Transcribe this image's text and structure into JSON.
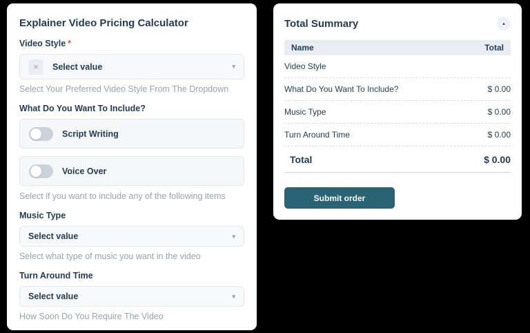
{
  "icons": {
    "caret": "▾",
    "clear": "×",
    "collapse": "▴"
  },
  "colors": {
    "heading": "#1f3b57",
    "helper": "#99a3ae",
    "required": "#e6543f",
    "button": "#2a6374",
    "table_header_bg": "#e9edf1"
  },
  "calculator": {
    "title": "Explainer Video Pricing Calculator",
    "video_style": {
      "label": "Video Style",
      "required_mark": "*",
      "value": "Select value",
      "helper": "Select Your Preferred Video Style From The Dropdown"
    },
    "include": {
      "label": "What Do You Want To Include?",
      "toggles": [
        {
          "label": "Script Writing",
          "state": "off"
        },
        {
          "label": "Voice Over",
          "state": "off"
        }
      ],
      "helper": "Select if you want to include any of the following items"
    },
    "music_type": {
      "label": "Music Type",
      "value": "Select value",
      "helper": "Select what type of music you want in the video"
    },
    "turnaround": {
      "label": "Turn Around Time",
      "value": "Select value",
      "helper": "How Soon Do You Require The Video"
    }
  },
  "summary": {
    "title": "Total Summary",
    "columns": {
      "name": "Name",
      "total": "Total"
    },
    "rows": [
      {
        "name": "Video Style",
        "total": ""
      },
      {
        "name": "What Do You Want To Include?",
        "total": "$ 0.00"
      },
      {
        "name": "Music Type",
        "total": "$ 0.00"
      },
      {
        "name": "Turn Around Time",
        "total": "$ 0.00"
      }
    ],
    "total": {
      "label": "Total",
      "value": "$ 0.00"
    },
    "submit_label": "Submit order"
  }
}
